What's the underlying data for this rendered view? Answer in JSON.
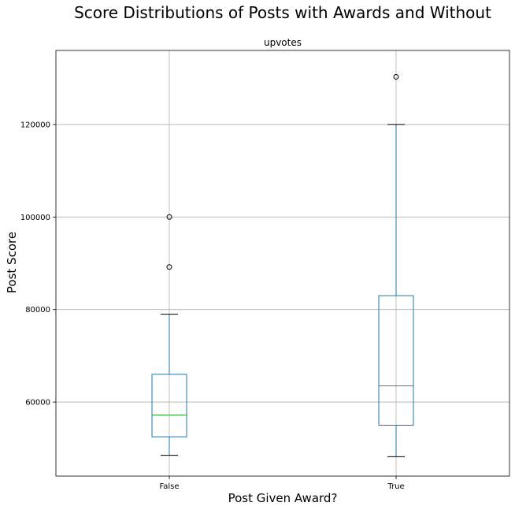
{
  "chart_data": {
    "type": "boxplot",
    "title": "Score Distributions of Posts with Awards and Without",
    "subtitle": "upvotes",
    "xlabel": "Post Given Award?",
    "ylabel": "Post Score",
    "categories": [
      "False",
      "True"
    ],
    "ylim": [
      44000,
      136000
    ],
    "yticks": [
      60000,
      80000,
      100000,
      120000
    ],
    "grid": true,
    "boxes": [
      {
        "category": "False",
        "whisker_low": 48500,
        "q1": 52500,
        "median": 57200,
        "q3": 66000,
        "whisker_high": 79000,
        "outliers": [
          89200,
          100000
        ]
      },
      {
        "category": "True",
        "whisker_low": 48200,
        "q1": 55000,
        "median": 63500,
        "q3": 83000,
        "whisker_high": 120000,
        "outliers": [
          130300
        ]
      }
    ],
    "colors": {
      "box": "#1f77b4",
      "median": "#2ca02c",
      "whisker": "#1f77b4",
      "cap": "#000000",
      "outlier": "#000000",
      "grid": "#b0b0b0"
    }
  }
}
